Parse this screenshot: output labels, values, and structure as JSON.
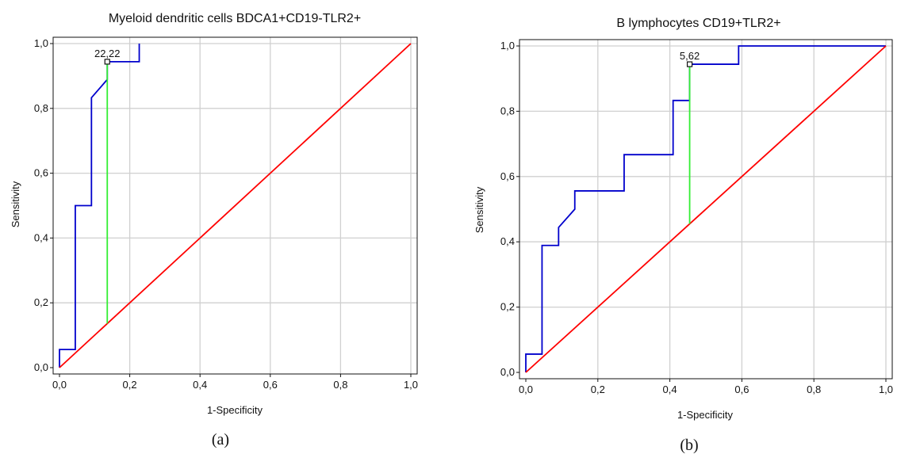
{
  "figures": [
    {
      "caption": "(a)",
      "chart_data": {
        "type": "line",
        "title": "Myeloid dendritic cells BDCA1+CD19-TLR2+",
        "xlabel": "1-Specificity",
        "ylabel": "Sensitivity",
        "xlim": [
          0,
          1
        ],
        "ylim": [
          0,
          1
        ],
        "xticks": [
          "0,0",
          "0,2",
          "0,4",
          "0,6",
          "0,8",
          "1,0"
        ],
        "yticks": [
          "0,0",
          "0,2",
          "0,4",
          "0,6",
          "0,8",
          "1,0"
        ],
        "grid": true,
        "colors": {
          "roc": "#0000cc",
          "diagonal": "#ff0000",
          "cutoff": "#33ee33"
        },
        "series": [
          {
            "role": "roc",
            "x": [
              0,
              0,
              0.045,
              0.045,
              0.091,
              0.091,
              0.136,
              0.136,
              0.227,
              0.227
            ],
            "y": [
              0,
              0.056,
              0.056,
              0.5,
              0.5,
              0.833,
              0.889,
              0.944,
              0.944,
              1.0
            ]
          },
          {
            "role": "diagonal",
            "x": [
              0,
              1
            ],
            "y": [
              0,
              1
            ]
          }
        ],
        "cutoff": {
          "label": "22,22",
          "x": 0.136,
          "y": 0.944,
          "y_low": 0.136
        }
      }
    },
    {
      "caption": "(b)",
      "chart_data": {
        "type": "line",
        "title": "B lymphocytes CD19+TLR2+",
        "xlabel": "1-Specificity",
        "ylabel": "Sensitivity",
        "xlim": [
          0,
          1
        ],
        "ylim": [
          0,
          1
        ],
        "xticks": [
          "0,0",
          "0,2",
          "0,4",
          "0,6",
          "0,8",
          "1,0"
        ],
        "yticks": [
          "0,0",
          "0,2",
          "0,4",
          "0,6",
          "0,8",
          "1,0"
        ],
        "grid": true,
        "colors": {
          "roc": "#0000cc",
          "diagonal": "#ff0000",
          "cutoff": "#33ee33"
        },
        "series": [
          {
            "role": "roc",
            "x": [
              0,
              0,
              0.045,
              0.045,
              0.091,
              0.091,
              0.136,
              0.136,
              0.273,
              0.273,
              0.409,
              0.409,
              0.455,
              0.455,
              0.591,
              0.591,
              1.0
            ],
            "y": [
              0,
              0.056,
              0.056,
              0.389,
              0.389,
              0.444,
              0.5,
              0.556,
              0.556,
              0.667,
              0.667,
              0.833,
              0.833,
              0.944,
              0.944,
              1.0,
              1.0
            ]
          },
          {
            "role": "diagonal",
            "x": [
              0,
              1
            ],
            "y": [
              0,
              1
            ]
          }
        ],
        "cutoff": {
          "label": "5,62",
          "x": 0.455,
          "y": 0.944,
          "y_low": 0.455
        }
      }
    }
  ]
}
